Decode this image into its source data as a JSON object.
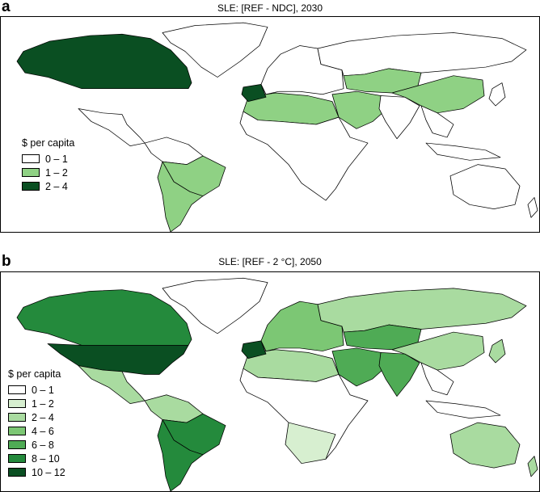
{
  "palette": {
    "bin0": "#ffffff",
    "bin1": "#d7efd0",
    "bin2": "#a9dba0",
    "bin3": "#7cc774",
    "bin4": "#4fab55",
    "bin5": "#248a3c",
    "bin6": "#0a4f22"
  },
  "panels": [
    {
      "letter": "a",
      "title": "SLE: [REF - NDC], 2030",
      "legend": {
        "title": "$ per capita",
        "items": [
          {
            "label": "0 – 1",
            "color": "#ffffff"
          },
          {
            "label": "1 – 2",
            "color": "#8fd184"
          },
          {
            "label": "2 – 4",
            "color": "#0a4f22"
          }
        ]
      },
      "regions": {
        "north-america": "#0a4f22",
        "greenland": "#ffffff",
        "central-america": "#ffffff",
        "south-america-north": "#ffffff",
        "brazil": "#8fd184",
        "southern-cone": "#8fd184",
        "africa": "#ffffff",
        "north-africa": "#8fd184",
        "europe": "#ffffff",
        "iberia": "#0a4f22",
        "russia": "#ffffff",
        "central-asia": "#8fd184",
        "middle-east": "#8fd184",
        "india": "#ffffff",
        "china": "#8fd184",
        "southeast-asia": "#ffffff",
        "japan": "#ffffff",
        "indonesia": "#ffffff",
        "australia": "#ffffff",
        "new-zealand": "#ffffff"
      }
    },
    {
      "letter": "b",
      "title": "SLE: [REF - 2 °C], 2050",
      "legend": {
        "title": "$ per capita",
        "items": [
          {
            "label": "0 – 1",
            "color": "#ffffff"
          },
          {
            "label": "1 – 2",
            "color": "#d7efd0"
          },
          {
            "label": "2 – 4",
            "color": "#a9dba0"
          },
          {
            "label": "4 – 6",
            "color": "#7cc774"
          },
          {
            "label": "6 – 8",
            "color": "#4fab55"
          },
          {
            "label": "8 – 10",
            "color": "#248a3c"
          },
          {
            "label": "10 – 12",
            "color": "#0a4f22"
          }
        ]
      },
      "regions": {
        "north-america": "#248a3c",
        "usa": "#0a4f22",
        "greenland": "#ffffff",
        "central-america": "#a9dba0",
        "south-america-north": "#a9dba0",
        "brazil": "#248a3c",
        "southern-cone": "#248a3c",
        "africa": "#ffffff",
        "north-africa": "#a9dba0",
        "southern-africa": "#d7efd0",
        "europe": "#7cc774",
        "iberia": "#0a4f22",
        "russia": "#a9dba0",
        "central-asia": "#4fab55",
        "middle-east": "#4fab55",
        "india": "#4fab55",
        "china": "#a9dba0",
        "southeast-asia": "#ffffff",
        "japan": "#a9dba0",
        "indonesia": "#ffffff",
        "australia": "#a9dba0",
        "new-zealand": "#a9dba0"
      }
    }
  ]
}
